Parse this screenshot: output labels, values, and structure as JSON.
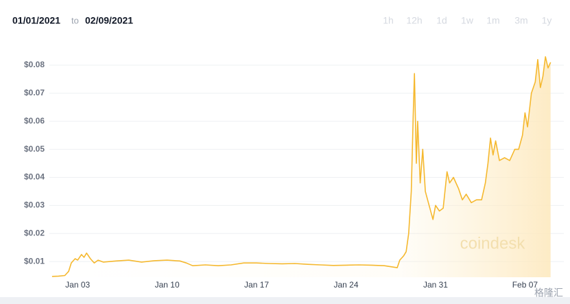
{
  "toolbar": {
    "from": "01/01/2021",
    "separator": "to",
    "to": "02/09/2021",
    "ranges": [
      "1h",
      "12h",
      "1d",
      "1w",
      "1m",
      "3m",
      "1y"
    ]
  },
  "chart_data": {
    "type": "line",
    "watermark": "coindesk",
    "watermark_2": "格隆汇",
    "x": [
      1,
      1.5,
      2,
      2.3,
      2.5,
      2.8,
      3,
      3.3,
      3.5,
      3.7,
      4,
      4.3,
      4.6,
      5,
      6,
      7,
      8,
      9,
      10,
      11,
      11.5,
      12,
      13,
      14,
      15,
      16,
      17,
      18,
      19,
      20,
      21,
      22,
      23,
      24,
      25,
      26,
      27,
      28,
      28.2,
      28.5,
      28.7,
      28.9,
      29.1,
      29.25,
      29.35,
      29.5,
      29.6,
      29.8,
      30,
      30.2,
      30.5,
      30.8,
      31,
      31.3,
      31.6,
      31.9,
      32.1,
      32.4,
      32.8,
      33.1,
      33.4,
      33.8,
      34.2,
      34.6,
      34.9,
      35.1,
      35.3,
      35.5,
      35.7,
      36,
      36.4,
      36.8,
      37.2,
      37.5,
      37.8,
      38,
      38.2,
      38.5,
      38.8,
      39,
      39.2,
      39.4,
      39.6,
      39.8,
      40
    ],
    "series": [
      {
        "color": "#f5b82e",
        "values": [
          0.0047,
          0.0048,
          0.005,
          0.0065,
          0.0095,
          0.011,
          0.0105,
          0.0125,
          0.0115,
          0.013,
          0.011,
          0.0095,
          0.0105,
          0.0098,
          0.0102,
          0.0105,
          0.0098,
          0.0103,
          0.0105,
          0.0102,
          0.0095,
          0.0085,
          0.0088,
          0.0085,
          0.0088,
          0.0095,
          0.0095,
          0.0093,
          0.0092,
          0.0093,
          0.009,
          0.0088,
          0.0086,
          0.0087,
          0.0088,
          0.0087,
          0.0085,
          0.0078,
          0.0105,
          0.012,
          0.0135,
          0.02,
          0.035,
          0.062,
          0.077,
          0.045,
          0.06,
          0.038,
          0.05,
          0.035,
          0.03,
          0.025,
          0.03,
          0.028,
          0.029,
          0.042,
          0.038,
          0.04,
          0.036,
          0.032,
          0.034,
          0.031,
          0.032,
          0.032,
          0.038,
          0.045,
          0.054,
          0.048,
          0.053,
          0.046,
          0.047,
          0.046,
          0.05,
          0.05,
          0.055,
          0.063,
          0.058,
          0.07,
          0.074,
          0.082,
          0.072,
          0.076,
          0.083,
          0.079,
          0.081
        ]
      }
    ],
    "xlim": [
      0.79,
      40.5
    ],
    "xticks": [
      {
        "value": 3,
        "label": "Jan 03"
      },
      {
        "value": 10,
        "label": "Jan 10"
      },
      {
        "value": 17,
        "label": "Jan 17"
      },
      {
        "value": 24,
        "label": "Jan 24"
      },
      {
        "value": 31,
        "label": "Jan 31"
      },
      {
        "value": 38,
        "label": "Feb 07"
      }
    ],
    "ylim": [
      0.0044,
      0.0861
    ],
    "yticks": [
      {
        "value": 0.01,
        "label": "$0.01"
      },
      {
        "value": 0.02,
        "label": "$0.02"
      },
      {
        "value": 0.03,
        "label": "$0.03"
      },
      {
        "value": 0.04,
        "label": "$0.04"
      },
      {
        "value": 0.05,
        "label": "$0.05"
      },
      {
        "value": 0.06,
        "label": "$0.06"
      },
      {
        "value": 0.07,
        "label": "$0.07"
      },
      {
        "value": 0.08,
        "label": "$0.08"
      }
    ],
    "grid": true
  }
}
